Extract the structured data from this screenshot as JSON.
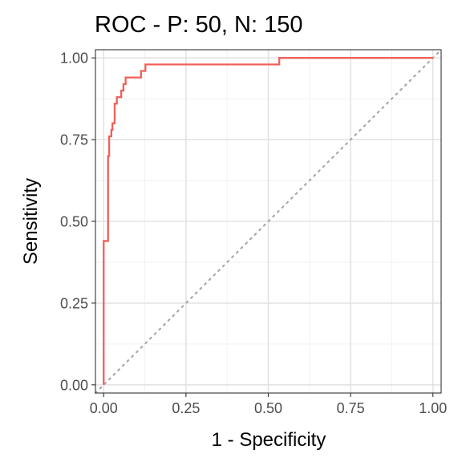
{
  "chart_data": {
    "type": "line",
    "title": "ROC - P: 50, N: 150",
    "xlabel": "1 - Specificity",
    "ylabel": "Sensitivity",
    "xlim": [
      -0.025,
      1.025
    ],
    "ylim": [
      -0.025,
      1.025
    ],
    "x_ticks": [
      0,
      0.25,
      0.5,
      0.75,
      1
    ],
    "x_tick_labels": [
      "0.00",
      "0.25",
      "0.50",
      "0.75",
      "1.00"
    ],
    "y_ticks": [
      0,
      0.25,
      0.5,
      0.75,
      1
    ],
    "y_tick_labels": [
      "0.00",
      "0.25",
      "0.50",
      "0.75",
      "1.00"
    ],
    "grid": true,
    "series": [
      {
        "color": "#f0605a",
        "x": [
          0,
          0,
          0.0067,
          0.0067,
          0.0133,
          0.0133,
          0.0167,
          0.0167,
          0.0233,
          0.0233,
          0.0267,
          0.0267,
          0.0333,
          0.0333,
          0.04,
          0.04,
          0.0467,
          0.0467,
          0.0533,
          0.0533,
          0.06,
          0.06,
          0.0667,
          0.0667,
          0.0733,
          0.0733,
          0.0867,
          0.0867,
          0.1133,
          0.1133,
          0.1267,
          0.1267,
          0.5333,
          0.5333,
          1.0
        ],
        "y": [
          0,
          0.44,
          0.44,
          0.44,
          0.44,
          0.7,
          0.7,
          0.76,
          0.76,
          0.78,
          0.78,
          0.8,
          0.8,
          0.86,
          0.86,
          0.88,
          0.88,
          0.88,
          0.88,
          0.9,
          0.9,
          0.92,
          0.92,
          0.94,
          0.94,
          0.94,
          0.94,
          0.94,
          0.94,
          0.96,
          0.96,
          0.98,
          0.98,
          1.0,
          1.0
        ]
      }
    ],
    "reference_line": {
      "x": [
        0,
        1
      ],
      "y": [
        0,
        1
      ],
      "color": "#a9a9a9",
      "style": "dotted"
    }
  }
}
